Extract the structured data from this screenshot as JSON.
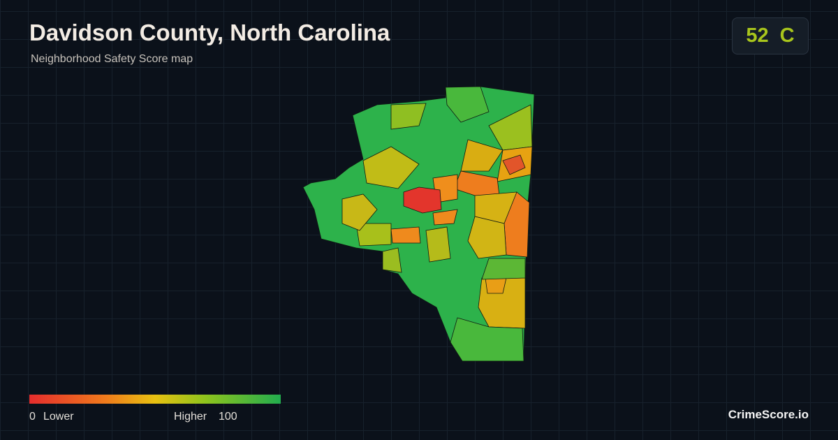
{
  "header": {
    "title": "Davidson County, North Carolina",
    "subtitle": "Neighborhood Safety Score map"
  },
  "score": {
    "value": "52",
    "grade": "C"
  },
  "legend": {
    "min": "0",
    "min_label": "Lower",
    "max_label": "Higher",
    "max": "100"
  },
  "brand": "CrimeScore.io"
}
